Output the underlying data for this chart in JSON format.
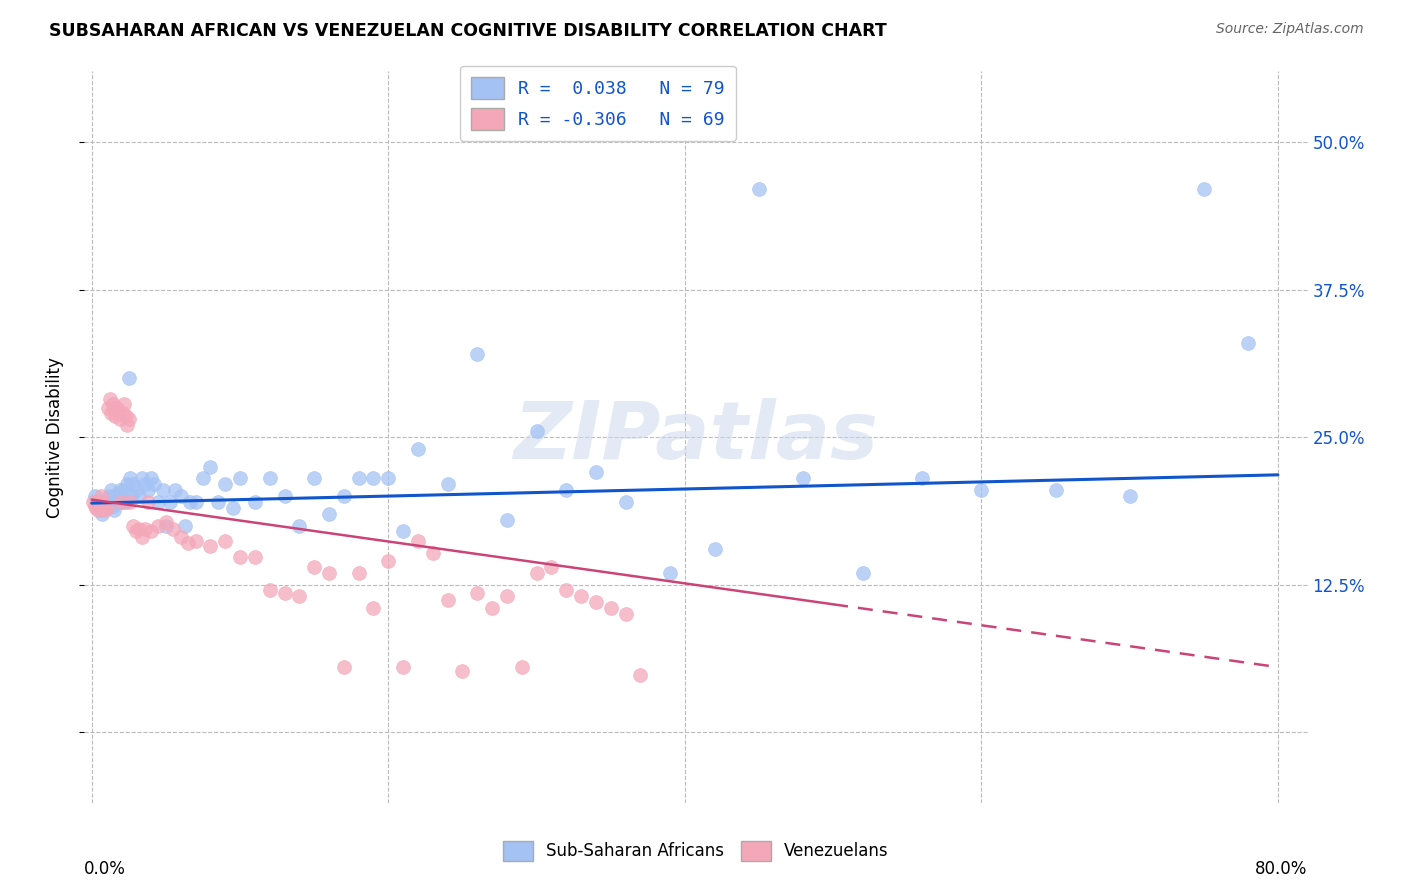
{
  "title": "SUBSAHARAN AFRICAN VS VENEZUELAN COGNITIVE DISABILITY CORRELATION CHART",
  "source": "Source: ZipAtlas.com",
  "ylabel": "Cognitive Disability",
  "ytick_vals": [
    0.0,
    0.125,
    0.25,
    0.375,
    0.5
  ],
  "ytick_labels": [
    "",
    "12.5%",
    "25.0%",
    "37.5%",
    "50.0%"
  ],
  "blue_color": "#a4c2f4",
  "pink_color": "#f4a7b9",
  "blue_line_color": "#1155cc",
  "pink_line_color": "#cc4477",
  "watermark": "ZIPatlas",
  "blue_label": "R =  0.038   N = 79",
  "pink_label": "R = -0.306   N = 69",
  "legend_blue": "Sub-Saharan Africans",
  "legend_pink": "Venezuelans",
  "blue_x": [
    0.002,
    0.003,
    0.004,
    0.005,
    0.006,
    0.007,
    0.008,
    0.009,
    0.01,
    0.011,
    0.012,
    0.013,
    0.014,
    0.015,
    0.016,
    0.017,
    0.018,
    0.019,
    0.02,
    0.021,
    0.022,
    0.023,
    0.024,
    0.025,
    0.026,
    0.027,
    0.028,
    0.03,
    0.032,
    0.034,
    0.036,
    0.038,
    0.04,
    0.042,
    0.045,
    0.048,
    0.05,
    0.053,
    0.056,
    0.06,
    0.063,
    0.066,
    0.07,
    0.075,
    0.08,
    0.085,
    0.09,
    0.095,
    0.1,
    0.11,
    0.12,
    0.13,
    0.14,
    0.15,
    0.16,
    0.17,
    0.18,
    0.19,
    0.2,
    0.21,
    0.22,
    0.24,
    0.26,
    0.28,
    0.3,
    0.32,
    0.34,
    0.36,
    0.39,
    0.42,
    0.45,
    0.48,
    0.52,
    0.56,
    0.6,
    0.65,
    0.7,
    0.75,
    0.78
  ],
  "blue_y": [
    0.2,
    0.195,
    0.195,
    0.192,
    0.188,
    0.185,
    0.19,
    0.193,
    0.198,
    0.195,
    0.2,
    0.205,
    0.192,
    0.188,
    0.195,
    0.202,
    0.198,
    0.205,
    0.2,
    0.195,
    0.205,
    0.195,
    0.21,
    0.3,
    0.215,
    0.2,
    0.21,
    0.205,
    0.2,
    0.215,
    0.21,
    0.205,
    0.215,
    0.21,
    0.195,
    0.205,
    0.175,
    0.195,
    0.205,
    0.2,
    0.175,
    0.195,
    0.195,
    0.215,
    0.225,
    0.195,
    0.21,
    0.19,
    0.215,
    0.195,
    0.215,
    0.2,
    0.175,
    0.215,
    0.185,
    0.2,
    0.215,
    0.215,
    0.215,
    0.17,
    0.24,
    0.21,
    0.32,
    0.18,
    0.255,
    0.205,
    0.22,
    0.195,
    0.135,
    0.155,
    0.46,
    0.215,
    0.135,
    0.215,
    0.205,
    0.205,
    0.2,
    0.46,
    0.33
  ],
  "pink_x": [
    0.001,
    0.002,
    0.003,
    0.004,
    0.005,
    0.006,
    0.007,
    0.008,
    0.009,
    0.01,
    0.011,
    0.012,
    0.013,
    0.014,
    0.015,
    0.016,
    0.017,
    0.018,
    0.019,
    0.02,
    0.021,
    0.022,
    0.023,
    0.024,
    0.025,
    0.026,
    0.028,
    0.03,
    0.032,
    0.034,
    0.036,
    0.038,
    0.04,
    0.045,
    0.05,
    0.055,
    0.06,
    0.065,
    0.07,
    0.08,
    0.09,
    0.1,
    0.11,
    0.12,
    0.13,
    0.14,
    0.15,
    0.16,
    0.17,
    0.18,
    0.19,
    0.2,
    0.21,
    0.22,
    0.23,
    0.24,
    0.25,
    0.26,
    0.27,
    0.28,
    0.29,
    0.3,
    0.31,
    0.32,
    0.33,
    0.34,
    0.35,
    0.36,
    0.37
  ],
  "pink_y": [
    0.195,
    0.192,
    0.19,
    0.188,
    0.195,
    0.2,
    0.195,
    0.192,
    0.188,
    0.19,
    0.275,
    0.282,
    0.27,
    0.278,
    0.275,
    0.268,
    0.275,
    0.272,
    0.265,
    0.195,
    0.27,
    0.278,
    0.268,
    0.26,
    0.265,
    0.195,
    0.175,
    0.17,
    0.172,
    0.165,
    0.172,
    0.195,
    0.17,
    0.175,
    0.178,
    0.172,
    0.165,
    0.16,
    0.162,
    0.158,
    0.162,
    0.148,
    0.148,
    0.12,
    0.118,
    0.115,
    0.14,
    0.135,
    0.055,
    0.135,
    0.105,
    0.145,
    0.055,
    0.162,
    0.152,
    0.112,
    0.052,
    0.118,
    0.105,
    0.115,
    0.055,
    0.135,
    0.14,
    0.12,
    0.115,
    0.11,
    0.105,
    0.1,
    0.048
  ],
  "xlim": [
    -0.005,
    0.82
  ],
  "ylim": [
    -0.06,
    0.56
  ]
}
